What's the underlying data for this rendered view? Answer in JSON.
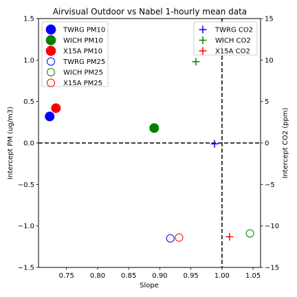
{
  "chart_data": {
    "type": "scatter",
    "title": "Airvisual Outdoor vs Nabel 1-hourly mean data",
    "xlabel": "Slope",
    "ylabel": "Intercept PM (ug/m3)",
    "ylabel_right": "Intercept CO2 (ppm)",
    "xlim": [
      0.705,
      1.062
    ],
    "ylim": [
      -1.5,
      1.5
    ],
    "ylim_right": [
      -15,
      15
    ],
    "xticks": [
      "0.75",
      "0.80",
      "0.85",
      "0.90",
      "0.95",
      "1.00",
      "1.05"
    ],
    "yticks": [
      "−1.5",
      "−1.0",
      "−0.5",
      "0.0",
      "0.5",
      "1.0",
      "1.5"
    ],
    "yticks_right": [
      "−15",
      "−10",
      "−5",
      "0",
      "5",
      "10",
      "15"
    ],
    "grid": false,
    "reference_lines": [
      {
        "orientation": "horizontal",
        "y": 0,
        "style": "dashed",
        "color": "#000000"
      },
      {
        "orientation": "vertical",
        "x": 1.0,
        "style": "dashed",
        "color": "#000000"
      }
    ],
    "legend_left": {
      "placement": "upper-left",
      "entries": [
        "TWRG PM10",
        "WICH PM10",
        "X15A PM10",
        "TWRG PM25",
        "WICH PM25",
        "X15A PM25"
      ]
    },
    "legend_right": {
      "placement": "upper-right",
      "entries": [
        "TWRG CO2",
        "WICH CO2",
        "X15A CO2"
      ]
    },
    "series": [
      {
        "name": "TWRG PM10",
        "axis": "left",
        "marker": "filled-circle",
        "color": "#0000ff",
        "points": [
          {
            "x": 0.723,
            "y": 0.32
          }
        ]
      },
      {
        "name": "WICH PM10",
        "axis": "left",
        "marker": "filled-circle",
        "color": "#008000",
        "points": [
          {
            "x": 0.891,
            "y": 0.18
          }
        ]
      },
      {
        "name": "X15A PM10",
        "axis": "left",
        "marker": "filled-circle",
        "color": "#ff0000",
        "points": [
          {
            "x": 0.733,
            "y": 0.42
          }
        ]
      },
      {
        "name": "TWRG PM25",
        "axis": "left",
        "marker": "open-circle",
        "color": "#0000ff",
        "points": [
          {
            "x": 0.917,
            "y": -1.15
          }
        ]
      },
      {
        "name": "WICH PM25",
        "axis": "left",
        "marker": "open-circle",
        "color": "#008000",
        "points": [
          {
            "x": 1.045,
            "y": -1.09
          }
        ]
      },
      {
        "name": "X15A PM25",
        "axis": "left",
        "marker": "open-circle",
        "color": "#ff0000",
        "points": [
          {
            "x": 0.931,
            "y": -1.14
          }
        ]
      },
      {
        "name": "TWRG CO2",
        "axis": "right",
        "marker": "plus",
        "color": "#0000ff",
        "points": [
          {
            "x": 0.988,
            "y": -0.1
          }
        ]
      },
      {
        "name": "WICH CO2",
        "axis": "right",
        "marker": "plus",
        "color": "#008000",
        "points": [
          {
            "x": 0.958,
            "y": 9.8
          }
        ]
      },
      {
        "name": "X15A CO2",
        "axis": "right",
        "marker": "plus",
        "color": "#ff0000",
        "points": [
          {
            "x": 1.012,
            "y": -11.3
          }
        ]
      }
    ]
  }
}
